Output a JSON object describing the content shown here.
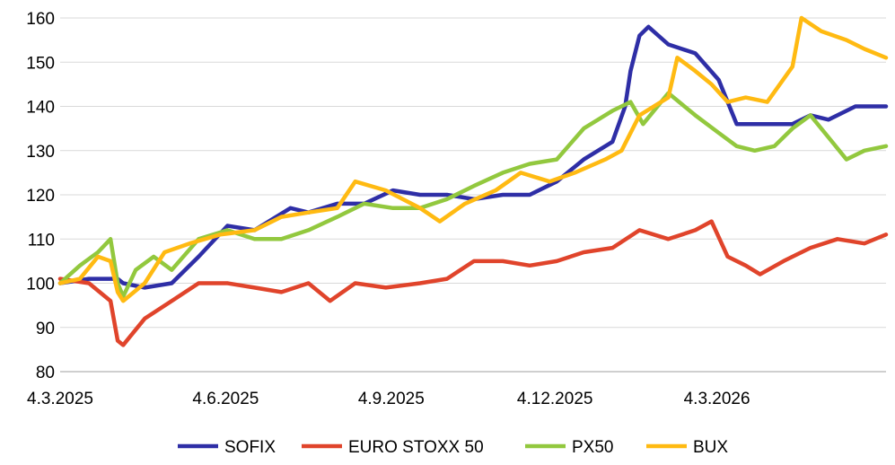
{
  "chart_data": {
    "type": "line",
    "ylim": [
      80,
      160
    ],
    "yticks": [
      80,
      90,
      100,
      110,
      120,
      130,
      140,
      150,
      160
    ],
    "xlim": [
      "2025-03-04",
      "2026-06-06"
    ],
    "xticks": [
      {
        "date": "2025-03-04",
        "label": "4.3.2025"
      },
      {
        "date": "2025-06-04",
        "label": "4.6.2025"
      },
      {
        "date": "2025-09-04",
        "label": "4.9.2025"
      },
      {
        "date": "2025-12-04",
        "label": "4.12.2025"
      },
      {
        "date": "2026-03-04",
        "label": "4.3.2026"
      }
    ],
    "grid": "horizontal",
    "legend_position": "bottom",
    "series": [
      {
        "name": "SOFIX",
        "color": "#2E2EA6",
        "points": [
          [
            "2025-03-04",
            100
          ],
          [
            "2025-03-20",
            101
          ],
          [
            "2025-04-05",
            101
          ],
          [
            "2025-04-08",
            100
          ],
          [
            "2025-04-20",
            99
          ],
          [
            "2025-05-05",
            100
          ],
          [
            "2025-05-20",
            106
          ],
          [
            "2025-06-05",
            113
          ],
          [
            "2025-06-20",
            112
          ],
          [
            "2025-07-10",
            117
          ],
          [
            "2025-07-20",
            116
          ],
          [
            "2025-08-05",
            118
          ],
          [
            "2025-08-20",
            118
          ],
          [
            "2025-09-05",
            121
          ],
          [
            "2025-09-20",
            120
          ],
          [
            "2025-10-05",
            120
          ],
          [
            "2025-10-20",
            119
          ],
          [
            "2025-11-05",
            120
          ],
          [
            "2025-11-20",
            120
          ],
          [
            "2025-12-05",
            123
          ],
          [
            "2025-12-20",
            128
          ],
          [
            "2026-01-05",
            132
          ],
          [
            "2026-01-12",
            140
          ],
          [
            "2026-01-15",
            148
          ],
          [
            "2026-01-20",
            156
          ],
          [
            "2026-01-25",
            158
          ],
          [
            "2026-02-05",
            154
          ],
          [
            "2026-02-20",
            152
          ],
          [
            "2026-03-05",
            146
          ],
          [
            "2026-03-15",
            136
          ],
          [
            "2026-03-25",
            136
          ],
          [
            "2026-04-05",
            136
          ],
          [
            "2026-04-15",
            136
          ],
          [
            "2026-04-25",
            138
          ],
          [
            "2026-05-05",
            137
          ],
          [
            "2026-05-20",
            140
          ],
          [
            "2026-06-06",
            140
          ]
        ]
      },
      {
        "name": "EURO STOXX 50",
        "color": "#E0442B",
        "points": [
          [
            "2025-03-04",
            101
          ],
          [
            "2025-03-20",
            100
          ],
          [
            "2025-04-01",
            96
          ],
          [
            "2025-04-05",
            87
          ],
          [
            "2025-04-08",
            86
          ],
          [
            "2025-04-20",
            92
          ],
          [
            "2025-05-05",
            96
          ],
          [
            "2025-05-20",
            100
          ],
          [
            "2025-06-05",
            100
          ],
          [
            "2025-06-20",
            99
          ],
          [
            "2025-07-05",
            98
          ],
          [
            "2025-07-20",
            100
          ],
          [
            "2025-08-01",
            96
          ],
          [
            "2025-08-15",
            100
          ],
          [
            "2025-09-01",
            99
          ],
          [
            "2025-09-20",
            100
          ],
          [
            "2025-10-05",
            101
          ],
          [
            "2025-10-20",
            105
          ],
          [
            "2025-11-05",
            105
          ],
          [
            "2025-11-20",
            104
          ],
          [
            "2025-12-05",
            105
          ],
          [
            "2025-12-20",
            107
          ],
          [
            "2026-01-05",
            108
          ],
          [
            "2026-01-20",
            112
          ],
          [
            "2026-02-05",
            110
          ],
          [
            "2026-02-20",
            112
          ],
          [
            "2026-03-01",
            114
          ],
          [
            "2026-03-10",
            106
          ],
          [
            "2026-03-20",
            104
          ],
          [
            "2026-03-28",
            102
          ],
          [
            "2026-04-10",
            105
          ],
          [
            "2026-04-25",
            108
          ],
          [
            "2026-05-10",
            110
          ],
          [
            "2026-05-25",
            109
          ],
          [
            "2026-06-06",
            111
          ]
        ]
      },
      {
        "name": "PX50",
        "color": "#92C83E",
        "points": [
          [
            "2025-03-04",
            100
          ],
          [
            "2025-03-15",
            104
          ],
          [
            "2025-03-25",
            107
          ],
          [
            "2025-04-01",
            110
          ],
          [
            "2025-04-05",
            100
          ],
          [
            "2025-04-08",
            97
          ],
          [
            "2025-04-15",
            103
          ],
          [
            "2025-04-25",
            106
          ],
          [
            "2025-05-05",
            103
          ],
          [
            "2025-05-20",
            110
          ],
          [
            "2025-06-05",
            112
          ],
          [
            "2025-06-20",
            110
          ],
          [
            "2025-07-05",
            110
          ],
          [
            "2025-07-20",
            112
          ],
          [
            "2025-08-05",
            115
          ],
          [
            "2025-08-20",
            118
          ],
          [
            "2025-09-05",
            117
          ],
          [
            "2025-09-20",
            117
          ],
          [
            "2025-10-05",
            119
          ],
          [
            "2025-10-20",
            122
          ],
          [
            "2025-11-05",
            125
          ],
          [
            "2025-11-20",
            127
          ],
          [
            "2025-12-05",
            128
          ],
          [
            "2025-12-20",
            135
          ],
          [
            "2026-01-05",
            139
          ],
          [
            "2026-01-15",
            141
          ],
          [
            "2026-01-22",
            136
          ],
          [
            "2026-02-05",
            143
          ],
          [
            "2026-02-20",
            138
          ],
          [
            "2026-03-05",
            134
          ],
          [
            "2026-03-15",
            131
          ],
          [
            "2026-03-25",
            130
          ],
          [
            "2026-04-05",
            131
          ],
          [
            "2026-04-15",
            135
          ],
          [
            "2026-04-25",
            138
          ],
          [
            "2026-05-05",
            133
          ],
          [
            "2026-05-15",
            128
          ],
          [
            "2026-05-25",
            130
          ],
          [
            "2026-06-06",
            131
          ]
        ]
      },
      {
        "name": "BUX",
        "color": "#FFBA12",
        "points": [
          [
            "2025-03-04",
            100
          ],
          [
            "2025-03-15",
            101
          ],
          [
            "2025-03-25",
            106
          ],
          [
            "2025-04-01",
            105
          ],
          [
            "2025-04-05",
            98
          ],
          [
            "2025-04-08",
            96
          ],
          [
            "2025-04-20",
            100
          ],
          [
            "2025-05-01",
            107
          ],
          [
            "2025-05-15",
            109
          ],
          [
            "2025-06-01",
            111
          ],
          [
            "2025-06-20",
            112
          ],
          [
            "2025-07-05",
            115
          ],
          [
            "2025-07-20",
            116
          ],
          [
            "2025-08-05",
            117
          ],
          [
            "2025-08-15",
            123
          ],
          [
            "2025-09-01",
            121
          ],
          [
            "2025-09-20",
            117
          ],
          [
            "2025-10-01",
            114
          ],
          [
            "2025-10-15",
            118
          ],
          [
            "2025-11-01",
            121
          ],
          [
            "2025-11-15",
            125
          ],
          [
            "2025-12-01",
            123
          ],
          [
            "2025-12-15",
            125
          ],
          [
            "2026-01-01",
            128
          ],
          [
            "2026-01-10",
            130
          ],
          [
            "2026-01-20",
            138
          ],
          [
            "2026-02-05",
            142
          ],
          [
            "2026-02-10",
            151
          ],
          [
            "2026-02-20",
            148
          ],
          [
            "2026-03-01",
            145
          ],
          [
            "2026-03-10",
            141
          ],
          [
            "2026-03-20",
            142
          ],
          [
            "2026-04-01",
            141
          ],
          [
            "2026-04-15",
            149
          ],
          [
            "2026-04-20",
            160
          ],
          [
            "2026-05-01",
            157
          ],
          [
            "2026-05-15",
            155
          ],
          [
            "2026-05-25",
            153
          ],
          [
            "2026-06-06",
            151
          ]
        ]
      }
    ]
  }
}
